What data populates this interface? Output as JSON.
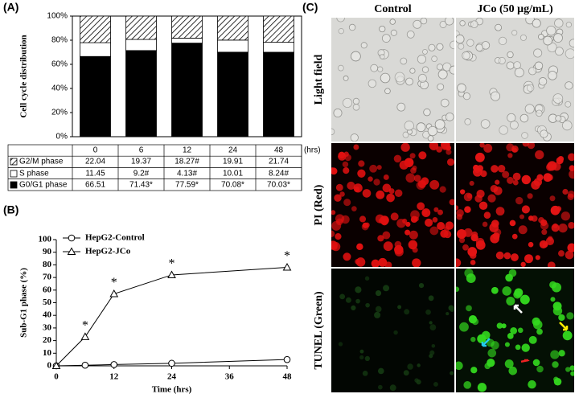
{
  "chart_data": [
    {
      "type": "stacked-bar",
      "panel_label": "(A)",
      "ylabel": "Cell cycle distribution",
      "categories": [
        "0",
        "6",
        "12",
        "24",
        "48"
      ],
      "x_unit": "(hrs)",
      "ylim": [
        0,
        100
      ],
      "yticks": [
        {
          "value": 0,
          "label": "0%"
        },
        {
          "value": 20,
          "label": "20%"
        },
        {
          "value": 40,
          "label": "40%"
        },
        {
          "value": 60,
          "label": "60%"
        },
        {
          "value": 80,
          "label": "80%"
        },
        {
          "value": 100,
          "label": "100%"
        }
      ],
      "series": [
        {
          "name": "G2/M phase",
          "color": "#000000",
          "hatch": true,
          "values": [
            22.04,
            19.37,
            18.27,
            19.91,
            21.74
          ],
          "value_labels": [
            "22.04",
            "19.37",
            "18.27#",
            "19.91",
            "21.74"
          ]
        },
        {
          "name": "S phase",
          "color": "#ffffff",
          "hatch": false,
          "values": [
            11.45,
            9.2,
            4.13,
            10.01,
            8.24
          ],
          "value_labels": [
            "11.45",
            "9.2#",
            "4.13#",
            "10.01",
            "8.24#"
          ]
        },
        {
          "name": "G0/G1 phase",
          "color": "#000000",
          "hatch": false,
          "values": [
            66.51,
            71.43,
            77.59,
            70.08,
            70.03
          ],
          "value_labels": [
            "66.51",
            "71.43*",
            "77.59*",
            "70.08*",
            "70.03*"
          ]
        }
      ]
    },
    {
      "type": "line",
      "panel_label": "(B)",
      "xlabel": "Time (hrs)",
      "ylabel": "Sub-G1 phase (%)",
      "x": [
        0,
        6,
        12,
        24,
        48
      ],
      "xlim": [
        0,
        48
      ],
      "xticks": [
        0,
        12,
        24,
        36,
        48
      ],
      "ylim": [
        0,
        100
      ],
      "yticks": [
        0,
        10,
        20,
        30,
        40,
        50,
        60,
        70,
        80,
        90,
        100
      ],
      "legend": "upper left",
      "series": [
        {
          "name": "HepG2-Control",
          "color": "#000000",
          "marker": "circle",
          "values": [
            0,
            0.5,
            1,
            2,
            5
          ]
        },
        {
          "name": "HepG2-JCo",
          "color": "#000000",
          "marker": "triangle",
          "values": [
            0,
            23,
            57,
            72,
            78
          ],
          "significance": [
            null,
            "*",
            "*",
            "*",
            "*"
          ]
        }
      ]
    }
  ],
  "panel_c": {
    "panel_label": "(C)",
    "columns": [
      "Control",
      "JCo (50 μg/mL)"
    ],
    "rows": [
      "Light field",
      "PI (Red)",
      "TUNEL (Green)"
    ]
  }
}
